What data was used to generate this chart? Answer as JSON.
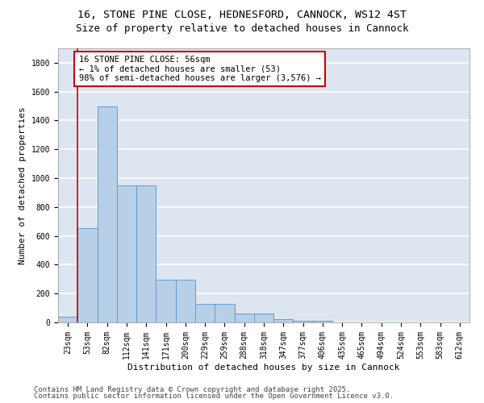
{
  "title_line1": "16, STONE PINE CLOSE, HEDNESFORD, CANNOCK, WS12 4ST",
  "title_line2": "Size of property relative to detached houses in Cannock",
  "xlabel": "Distribution of detached houses by size in Cannock",
  "ylabel": "Number of detached properties",
  "categories": [
    "23sqm",
    "53sqm",
    "82sqm",
    "112sqm",
    "141sqm",
    "171sqm",
    "200sqm",
    "229sqm",
    "259sqm",
    "288sqm",
    "318sqm",
    "347sqm",
    "377sqm",
    "406sqm",
    "435sqm",
    "465sqm",
    "494sqm",
    "524sqm",
    "553sqm",
    "583sqm",
    "612sqm"
  ],
  "values": [
    40,
    655,
    1495,
    950,
    950,
    295,
    295,
    130,
    130,
    60,
    60,
    25,
    10,
    10,
    0,
    0,
    0,
    0,
    0,
    0,
    0
  ],
  "bar_color": "#b8cfe8",
  "bar_edge_color": "#6699cc",
  "annotation_box_text": "16 STONE PINE CLOSE: 56sqm\n← 1% of detached houses are smaller (53)\n98% of semi-detached houses are larger (3,576) →",
  "vline_x": 0.5,
  "vline_color": "#cc0000",
  "box_color": "#cc0000",
  "ylim": [
    0,
    1900
  ],
  "yticks": [
    0,
    200,
    400,
    600,
    800,
    1000,
    1200,
    1400,
    1600,
    1800
  ],
  "bg_color": "#dde6f0",
  "grid_color": "#ffffff",
  "footer_line1": "Contains HM Land Registry data © Crown copyright and database right 2025.",
  "footer_line2": "Contains public sector information licensed under the Open Government Licence v3.0.",
  "title_fontsize": 9.5,
  "subtitle_fontsize": 9,
  "label_fontsize": 8,
  "tick_fontsize": 7,
  "footer_fontsize": 6.5,
  "ann_fontsize": 7.5
}
